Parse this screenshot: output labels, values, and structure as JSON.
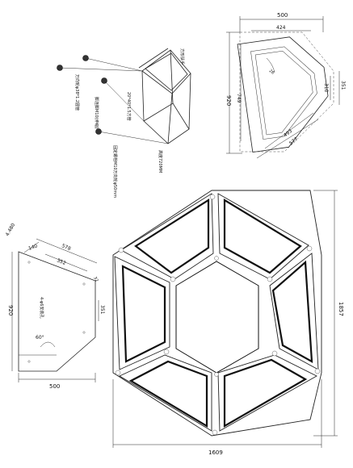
{
  "top_view": {
    "dim_top_outer": "500",
    "dim_top_inner": "424",
    "dim_left_outer": "920",
    "dim_left_inner": "749",
    "dim_right_outer": "351",
    "dim_right_inner": "310",
    "dim_bottom_outer": "577",
    "dim_bottom_inner": "493",
    "angle_note": "26"
  },
  "frame_view": {
    "callout_caster": "万向轮φ38*1.2圆管",
    "callout_tube": "20*40*1.5方管",
    "callout_top": "方形扶手",
    "callout_leg": "脚连脚M10(伸缩)",
    "callout_bolt": "固定螺栓M10万向轮φ50mm",
    "callout_height": "高度720MM"
  },
  "side_view": {
    "dim_corner": "4.480",
    "dim_140": "140",
    "dim_578": "578",
    "dim_352": "352",
    "dim_32": "32",
    "dim_920": "920",
    "dim_351": "351",
    "dim_500": "500",
    "angle": "60°",
    "note": "4-φ6安装孔"
  },
  "assembly": {
    "width": "1609",
    "height": "1857"
  }
}
